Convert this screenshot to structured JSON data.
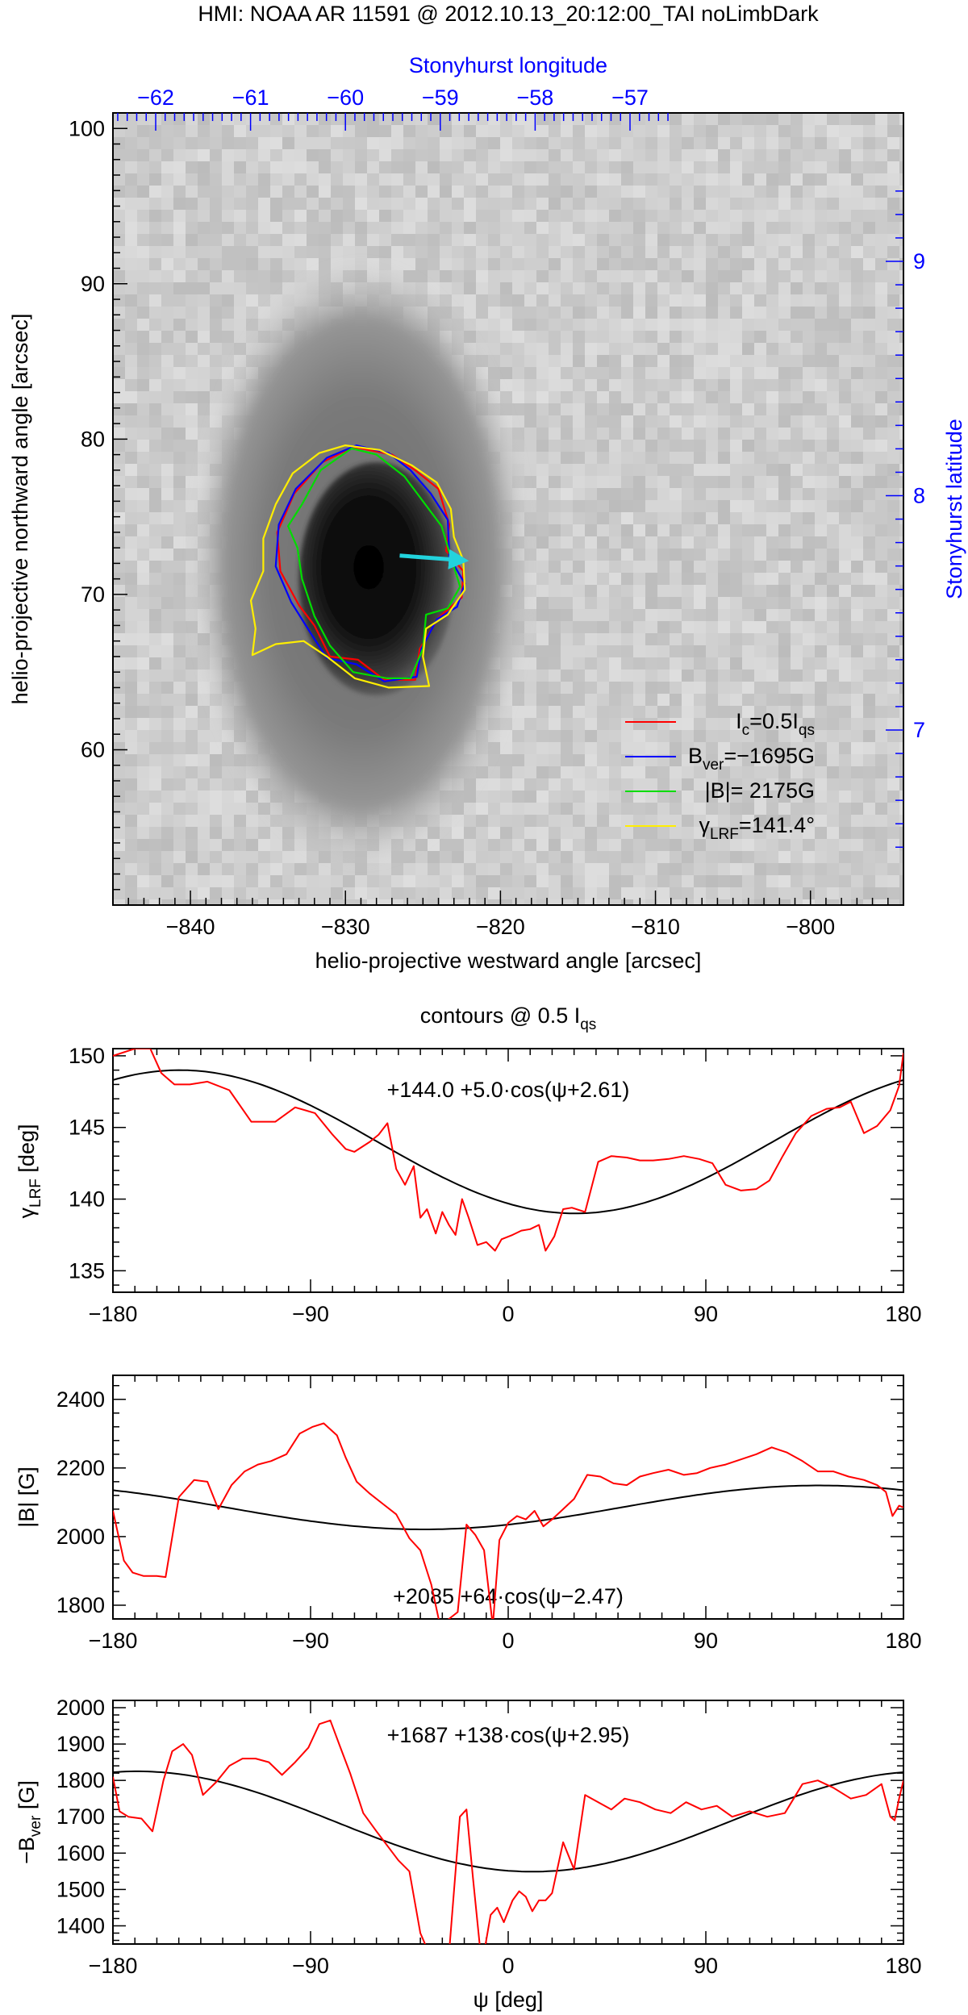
{
  "figure_title": "HMI: NOAA AR 11591 @ 2012.10.13_20:12:00_TAI noLimbDark",
  "chart_data": [
    {
      "type": "image",
      "xlabel": "helio-projective westward angle [arcsec]",
      "ylabel": "helio-projective northward angle [arcsec]",
      "xlim": [
        -845,
        -794
      ],
      "ylim": [
        50,
        101
      ],
      "xticks": [
        -840,
        -830,
        -820,
        -810,
        -800
      ],
      "yticks": [
        60,
        70,
        80,
        90,
        100
      ],
      "top_axis": {
        "label": "Stonyhurst longitude",
        "ticks": [
          -62,
          -61,
          -60,
          -59,
          -58,
          -57
        ],
        "color": "#0000ff"
      },
      "right_axis": {
        "label": "Stonyhurst latitude",
        "ticks": [
          7,
          8,
          9
        ],
        "color": "#0000ff"
      },
      "sunspot": {
        "umbra_center": [
          -828,
          71
        ],
        "penumbra_center": [
          -829,
          72
        ]
      },
      "arrow": {
        "from": [
          -826.5,
          72.5
        ],
        "to": [
          -822.5,
          72.2
        ],
        "color": "#22d3dd"
      },
      "contours": [
        {
          "name": "Ic=0.5Iqs",
          "color": "#ff0000",
          "points": [
            [
              -829.5,
              79.5
            ],
            [
              -827,
              79
            ],
            [
              -825.5,
              78
            ],
            [
              -824,
              76.8
            ],
            [
              -823.3,
              74.5
            ],
            [
              -823.5,
              72.8
            ],
            [
              -822.4,
              71.5
            ],
            [
              -822.5,
              69.8
            ],
            [
              -824,
              68.5
            ],
            [
              -825.2,
              66.5
            ],
            [
              -825.5,
              64.5
            ],
            [
              -827.5,
              64.5
            ],
            [
              -829.2,
              65.8
            ],
            [
              -831,
              66
            ],
            [
              -832,
              68
            ],
            [
              -833,
              69.3
            ],
            [
              -834.2,
              71.5
            ],
            [
              -834.4,
              74
            ],
            [
              -833.3,
              76.5
            ],
            [
              -831.5,
              78.5
            ]
          ]
        },
        {
          "name": "Bver=-1695G",
          "color": "#0000ff",
          "points": [
            [
              -829.3,
              79.6
            ],
            [
              -827.2,
              79.1
            ],
            [
              -825.8,
              78
            ],
            [
              -824.5,
              76.5
            ],
            [
              -823.4,
              74.8
            ],
            [
              -823.3,
              72.4
            ],
            [
              -822.3,
              70.7
            ],
            [
              -822.8,
              69.2
            ],
            [
              -824.1,
              68.4
            ],
            [
              -825.1,
              66.5
            ],
            [
              -825.4,
              64.7
            ],
            [
              -827.5,
              64.4
            ],
            [
              -829.3,
              65.5
            ],
            [
              -831.2,
              65.9
            ],
            [
              -832.3,
              67.6
            ],
            [
              -833.5,
              69.5
            ],
            [
              -834.5,
              71.8
            ],
            [
              -834.3,
              74.5
            ],
            [
              -833.2,
              76.8
            ],
            [
              -831.2,
              78.8
            ]
          ]
        },
        {
          "name": "|B|= 2175G",
          "color": "#00dd00",
          "points": [
            [
              -829.6,
              79.4
            ],
            [
              -828,
              79
            ],
            [
              -826.2,
              77.6
            ],
            [
              -825,
              76
            ],
            [
              -823.8,
              74.4
            ],
            [
              -823.2,
              72.4
            ],
            [
              -822.6,
              70.5
            ],
            [
              -823.4,
              69.1
            ],
            [
              -824.8,
              68.7
            ],
            [
              -825,
              66.5
            ],
            [
              -825.8,
              64.6
            ],
            [
              -827.3,
              64.6
            ],
            [
              -829.5,
              65
            ],
            [
              -831,
              66.7
            ],
            [
              -832,
              68.6
            ],
            [
              -832.8,
              71
            ],
            [
              -833.1,
              73
            ],
            [
              -833.7,
              74.4
            ],
            [
              -832.8,
              75.8
            ],
            [
              -831.6,
              78
            ]
          ]
        },
        {
          "name": "γLRF=141.4°",
          "color": "#ffee00",
          "points": [
            [
              -830,
              79.6
            ],
            [
              -827.8,
              79.3
            ],
            [
              -825.7,
              78.3
            ],
            [
              -824.1,
              77.2
            ],
            [
              -823.2,
              75.5
            ],
            [
              -823,
              73.7
            ],
            [
              -822.4,
              72.2
            ],
            [
              -822.3,
              70.3
            ],
            [
              -823.4,
              68.7
            ],
            [
              -824.8,
              67.8
            ],
            [
              -825,
              66
            ],
            [
              -824.6,
              64.1
            ],
            [
              -827.2,
              64
            ],
            [
              -829.4,
              64.6
            ],
            [
              -831.2,
              66
            ],
            [
              -832.7,
              67
            ],
            [
              -834.5,
              66.8
            ],
            [
              -836,
              66.1
            ],
            [
              -835.8,
              67.8
            ],
            [
              -836.1,
              69.6
            ],
            [
              -835.3,
              71.5
            ],
            [
              -835.3,
              73.6
            ],
            [
              -834.5,
              75.8
            ],
            [
              -833.4,
              77.8
            ],
            [
              -831.7,
              79.1
            ]
          ]
        }
      ],
      "legend": [
        {
          "label": "Ic=0.5Iqs",
          "main": "I",
          "sub1": "c",
          "mid": "=0.5I",
          "sub2": "qs",
          "color": "#ff0000"
        },
        {
          "label": "Bver=−1695G",
          "main": "B",
          "sub1": "ver",
          "mid": "=−1695G",
          "sub2": "",
          "color": "#0000ff"
        },
        {
          "label": "|B|= 2175G",
          "main": "|B|=  2175G",
          "sub1": "",
          "mid": "",
          "sub2": "",
          "color": "#00dd00"
        },
        {
          "label": "γLRF=141.4°",
          "main": "γ",
          "sub1": "LRF",
          "mid": "=141.4°",
          "sub2": "",
          "color": "#ffee00"
        }
      ]
    },
    {
      "type": "line",
      "title_main": "contours @ 0.5 I",
      "title_sub": "qs",
      "ylabel_main": "γ",
      "ylabel_sub": "LRF",
      "ylabel_tail": " [deg]",
      "xlim": [
        -180,
        180
      ],
      "ylim": [
        133.5,
        150.5
      ],
      "xticks": [
        -180,
        -90,
        0,
        90,
        180
      ],
      "yticks": [
        135,
        140,
        145,
        150
      ],
      "fit_label": "+144.0  +5.0·cos(ψ+2.61)",
      "fit": {
        "a": 144.0,
        "b": 5.0,
        "phase": 2.61
      },
      "series": [
        {
          "name": "data",
          "color": "#ff0000",
          "x": [
            -180,
            -170,
            -163,
            -158,
            -152,
            -145,
            -137,
            -127,
            -117,
            -106,
            -97,
            -88,
            -80,
            -74,
            -70,
            -63,
            -59,
            -55,
            -51,
            -47,
            -43,
            -40,
            -37,
            -33,
            -30,
            -27,
            -24,
            -21,
            -18,
            -14,
            -10,
            -6,
            -3,
            2,
            6,
            10,
            14,
            17,
            21,
            25,
            29,
            35,
            41,
            47,
            54,
            60,
            66,
            73,
            80,
            87,
            93,
            99,
            106,
            113,
            119,
            125,
            131,
            138,
            145,
            151,
            156,
            162,
            168,
            174,
            178,
            180
          ],
          "y": [
            150.0,
            150.5,
            150.5,
            148.8,
            148.0,
            148.0,
            148.2,
            147.6,
            145.4,
            145.4,
            146.4,
            146.0,
            144.5,
            143.5,
            143.3,
            144.0,
            144.5,
            145.3,
            142.1,
            141.0,
            142.3,
            138.7,
            139.3,
            137.6,
            139.1,
            138.2,
            137.5,
            140.0,
            138.7,
            136.8,
            137.0,
            136.4,
            137.2,
            137.5,
            137.8,
            137.9,
            138.2,
            136.4,
            137.4,
            139.3,
            139.4,
            139.1,
            142.6,
            143.0,
            142.9,
            142.7,
            142.7,
            142.8,
            143.0,
            142.8,
            142.5,
            141.0,
            140.6,
            140.7,
            141.3,
            143.0,
            144.6,
            145.8,
            146.3,
            146.4,
            146.8,
            144.6,
            145.1,
            146.2,
            147.9,
            150.2
          ]
        },
        {
          "name": "fit",
          "color": "#000000"
        }
      ]
    },
    {
      "type": "line",
      "ylabel": "|B| [G]",
      "xlim": [
        -180,
        180
      ],
      "ylim": [
        1760,
        2470
      ],
      "xticks": [
        -180,
        -90,
        0,
        90,
        180
      ],
      "yticks": [
        1800,
        2000,
        2200,
        2400
      ],
      "fit_label": "+2085  +64·cos(ψ−2.47)",
      "fit": {
        "a": 2085,
        "b": 64,
        "phase": -2.47
      },
      "series": [
        {
          "name": "data",
          "color": "#ff0000",
          "x": [
            -180,
            -175,
            -171,
            -166,
            -160,
            -156,
            -150,
            -143,
            -137,
            -132,
            -126,
            -120,
            -114,
            -108,
            -101,
            -95,
            -89,
            -84,
            -78,
            -74,
            -69,
            -63,
            -57,
            -51,
            -45,
            -40,
            -35,
            -31,
            -27,
            -23,
            -19,
            -15,
            -11,
            -7,
            -4,
            0,
            4,
            8,
            12,
            16,
            20,
            25,
            30,
            36,
            42,
            48,
            54,
            60,
            66,
            73,
            80,
            86,
            92,
            99,
            106,
            113,
            120,
            127,
            134,
            141,
            148,
            155,
            162,
            168,
            172,
            175,
            178,
            180
          ],
          "y": [
            2075,
            1930,
            1895,
            1885,
            1885,
            1882,
            2115,
            2165,
            2160,
            2080,
            2150,
            2190,
            2210,
            2220,
            2240,
            2300,
            2320,
            2330,
            2295,
            2230,
            2160,
            2125,
            2095,
            2065,
            1995,
            1960,
            1860,
            1740,
            1760,
            1780,
            2035,
            2005,
            1960,
            1740,
            1990,
            2040,
            2060,
            2050,
            2075,
            2030,
            2050,
            2080,
            2110,
            2180,
            2175,
            2155,
            2150,
            2175,
            2185,
            2195,
            2180,
            2185,
            2200,
            2210,
            2225,
            2240,
            2260,
            2245,
            2220,
            2190,
            2190,
            2175,
            2165,
            2150,
            2130,
            2060,
            2090,
            2085
          ]
        },
        {
          "name": "fit",
          "color": "#000000"
        }
      ]
    },
    {
      "type": "line",
      "xlabel": "ψ [deg]",
      "ylabel_main": "−B",
      "ylabel_sub": "ver",
      "ylabel_tail": " [G]",
      "xlim": [
        -180,
        180
      ],
      "ylim": [
        1350,
        2020
      ],
      "xticks": [
        -180,
        -90,
        0,
        90,
        180
      ],
      "yticks": [
        1400,
        1500,
        1600,
        1700,
        1800,
        1900,
        2000
      ],
      "fit_label": "+1687 +138·cos(ψ+2.95)",
      "fit": {
        "a": 1687,
        "b": 138,
        "phase": 2.95
      },
      "series": [
        {
          "name": "data",
          "color": "#ff0000",
          "x": [
            -180,
            -177,
            -173,
            -167,
            -162,
            -157,
            -153,
            -148,
            -144,
            -139,
            -133,
            -127,
            -121,
            -115,
            -109,
            -103,
            -97,
            -91,
            -86,
            -81,
            -77,
            -72,
            -66,
            -60,
            -55,
            -50,
            -45,
            -40,
            -35,
            -31,
            -27,
            -22,
            -19,
            -16,
            -12,
            -8,
            -5,
            -2,
            2,
            5,
            8,
            11,
            14,
            17,
            20,
            25,
            30,
            35,
            41,
            47,
            53,
            60,
            67,
            74,
            81,
            88,
            95,
            102,
            110,
            118,
            126,
            134,
            141,
            148,
            156,
            163,
            170,
            174,
            176,
            178,
            180
          ],
          "y": [
            1810,
            1715,
            1700,
            1695,
            1660,
            1800,
            1880,
            1900,
            1870,
            1760,
            1795,
            1840,
            1860,
            1860,
            1850,
            1815,
            1850,
            1890,
            1955,
            1965,
            1900,
            1820,
            1710,
            1660,
            1620,
            1580,
            1550,
            1380,
            1310,
            1300,
            1320,
            1700,
            1720,
            1530,
            1290,
            1430,
            1450,
            1410,
            1470,
            1495,
            1480,
            1440,
            1470,
            1470,
            1490,
            1630,
            1555,
            1760,
            1740,
            1720,
            1750,
            1740,
            1720,
            1710,
            1740,
            1720,
            1730,
            1700,
            1715,
            1700,
            1710,
            1790,
            1800,
            1780,
            1750,
            1760,
            1790,
            1700,
            1690,
            1750,
            1800
          ]
        },
        {
          "name": "fit",
          "color": "#000000"
        }
      ]
    }
  ]
}
